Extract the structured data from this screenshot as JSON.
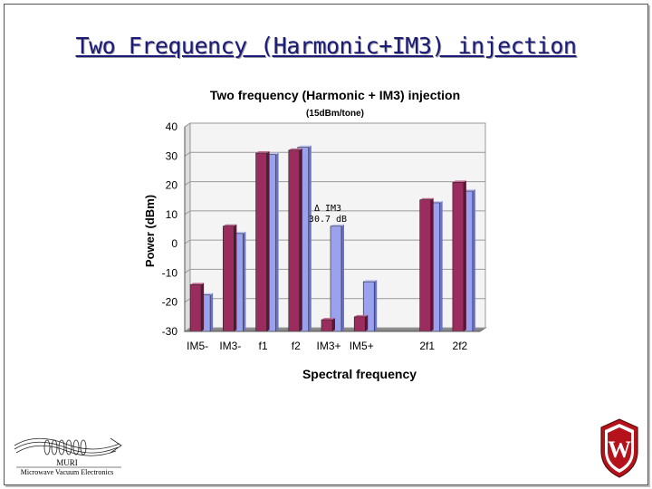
{
  "slide": {
    "title": "Two Frequency (Harmonic+IM3) injection"
  },
  "chart_data": {
    "type": "bar",
    "title": "Two frequency (Harmonic + IM3) injection",
    "subtitle": "(15dBm/tone)",
    "xlabel": "Spectral frequency",
    "ylabel": "Power (dBm)",
    "ylim": [
      -30,
      40
    ],
    "yticks": [
      40,
      30,
      20,
      10,
      0,
      -10,
      -20,
      -30
    ],
    "grid": true,
    "categories": [
      "IM5-",
      "IM3-",
      "f1",
      "f2",
      "IM3+",
      "IM5+",
      "",
      "2f1",
      "2f2"
    ],
    "series": [
      {
        "values": [
          -14,
          6,
          31,
          32,
          -26,
          -25,
          null,
          15,
          21
        ],
        "color": "#9b2d5e"
      },
      {
        "values": [
          -17.5,
          3.5,
          30.5,
          33,
          6,
          -13,
          null,
          14,
          18
        ],
        "color": "#9aa2f0"
      }
    ],
    "annotation": {
      "line1": "Δ IM3",
      "line2": "30.7 dB"
    }
  },
  "logos": {
    "muri": {
      "name": "MURI",
      "caption": "Microwave Vacuum Electronics"
    },
    "university": {
      "letter": "W",
      "color": "#b5121b"
    }
  }
}
